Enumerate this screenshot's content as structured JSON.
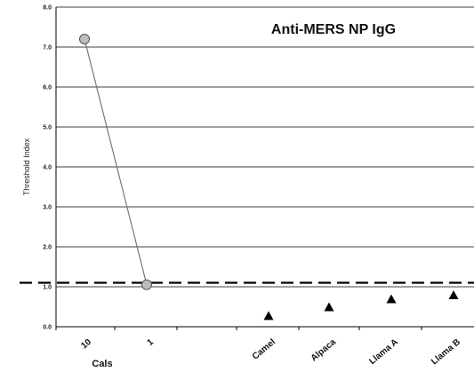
{
  "chart_data": {
    "type": "scatter",
    "title": "Anti-MERS NP IgG",
    "xlabel": "Cals",
    "ylabel": "Threshold Index",
    "ylim": [
      0,
      8
    ],
    "yticks": [
      "0.0",
      "1.0",
      "2.0",
      "3.0",
      "4.0",
      "5.0",
      "6.0",
      "7.0",
      "8.0"
    ],
    "grid": true,
    "categories": [
      "10",
      "1",
      "",
      "Camel",
      "Alpaca",
      "Llama A",
      "Llama B"
    ],
    "threshold": 1.1,
    "series": [
      {
        "marker": "circle",
        "connected": true,
        "points": [
          {
            "x": "10",
            "y": 7.2
          },
          {
            "x": "1",
            "y": 1.05
          }
        ]
      },
      {
        "marker": "triangle",
        "connected": false,
        "points": [
          {
            "x": "Camel",
            "y": 0.28
          },
          {
            "x": "Alpaca",
            "y": 0.5
          },
          {
            "x": "Llama A",
            "y": 0.7
          },
          {
            "x": "Llama B",
            "y": 0.8
          }
        ]
      }
    ]
  },
  "colors": {
    "circle_fill": "#bdbdbd",
    "circle_stroke": "#555555",
    "line": "#777777",
    "triangle": "#000000",
    "grid": "#000000",
    "threshold": "#000000"
  }
}
